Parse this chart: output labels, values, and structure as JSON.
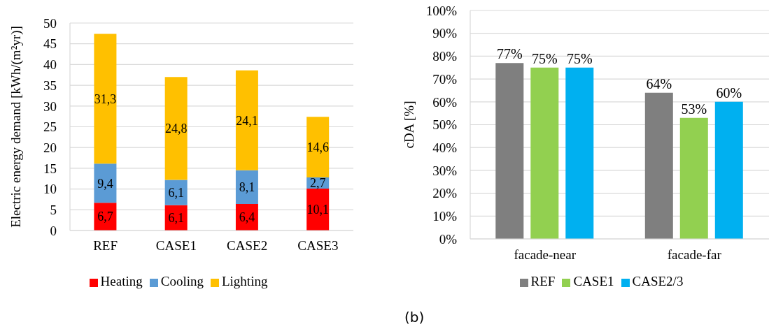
{
  "chart_data": [
    {
      "type": "bar",
      "stacked": true,
      "ylabel": "Electric energy demand [kWh/(m²yr)]",
      "categories": [
        "REF",
        "CASE1",
        "CASE2",
        "CASE3"
      ],
      "series": [
        {
          "name": "Heating",
          "color": "#ff0000",
          "values": [
            6.7,
            6.1,
            6.4,
            10.1
          ],
          "value_labels": [
            "6,7",
            "6,1",
            "6,4",
            "10,1"
          ]
        },
        {
          "name": "Cooling",
          "color": "#5b9bd5",
          "values": [
            9.4,
            6.1,
            8.1,
            2.7
          ],
          "value_labels": [
            "9,4",
            "6,1",
            "8,1",
            "2,7"
          ]
        },
        {
          "name": "Lighting",
          "color": "#ffc000",
          "values": [
            31.3,
            24.8,
            24.1,
            14.6
          ],
          "value_labels": [
            "31,3",
            "24,8",
            "24,1",
            "14,6"
          ]
        }
      ],
      "ylim": [
        0,
        50
      ],
      "yticks": [
        0,
        5,
        10,
        15,
        20,
        25,
        30,
        35,
        40,
        45,
        50
      ],
      "grid": "y",
      "legend": "bottom"
    },
    {
      "type": "bar",
      "ylabel": "cDA [%]",
      "categories": [
        "facade-near",
        "facade-far"
      ],
      "series": [
        {
          "name": "REF",
          "color": "#7f7f7f",
          "values": [
            77,
            64
          ],
          "value_labels": [
            "77%",
            "64%"
          ]
        },
        {
          "name": "CASE1",
          "color": "#92d050",
          "values": [
            75,
            53
          ],
          "value_labels": [
            "75%",
            "53%"
          ]
        },
        {
          "name": "CASE2/3",
          "color": "#00b0f0",
          "values": [
            75,
            60
          ],
          "value_labels": [
            "75%",
            "60%"
          ]
        }
      ],
      "ylim": [
        0,
        100
      ],
      "yticks": [
        {
          "value": 0,
          "label": "0%"
        },
        {
          "value": 10,
          "label": "10%"
        },
        {
          "value": 20,
          "label": "20%"
        },
        {
          "value": 30,
          "label": "30%"
        },
        {
          "value": 40,
          "label": "40%"
        },
        {
          "value": 50,
          "label": "50%"
        },
        {
          "value": 60,
          "label": "60%"
        },
        {
          "value": 70,
          "label": "70%"
        },
        {
          "value": 80,
          "label": "80%"
        },
        {
          "value": 90,
          "label": "90%"
        },
        {
          "value": 100,
          "label": "100%"
        }
      ],
      "grid": "y",
      "legend": "bottom",
      "annotations": [
        "(b)"
      ]
    }
  ]
}
